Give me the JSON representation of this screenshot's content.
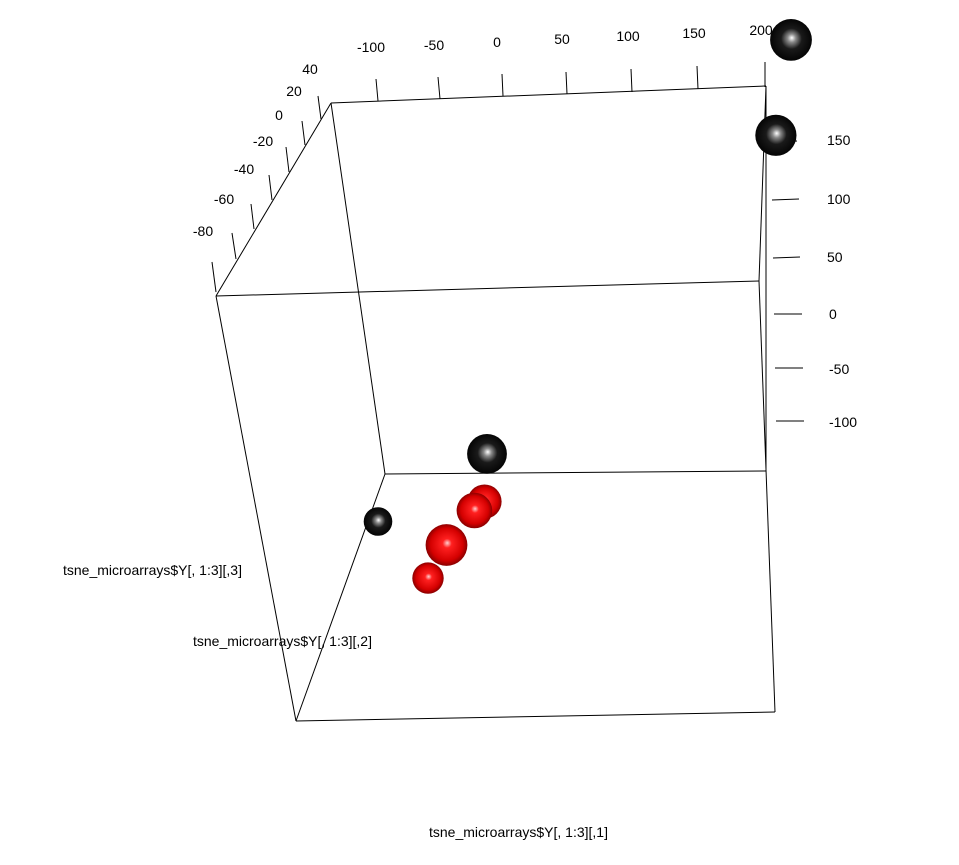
{
  "chart_data": {
    "type": "scatter",
    "dimensions": 3,
    "xlabel": "tsne_microarrays$Y[, 1:3][,1]",
    "ylabel": "tsne_microarrays$Y[, 1:3][,2]",
    "zlabel": "tsne_microarrays$Y[, 1:3][,3]",
    "x_ticks": [
      "-100",
      "-50",
      "0",
      "50",
      "100",
      "150",
      "200"
    ],
    "y_ticks": [
      "40",
      "20",
      "0",
      "-20",
      "-40",
      "-60",
      "-80"
    ],
    "z_ticks": [
      "150",
      "100",
      "50",
      "0",
      "-50",
      "-100"
    ],
    "colors": {
      "group_1": "#000000",
      "group_2": "#e00000"
    },
    "points": [
      {
        "group": "group_1",
        "x": 190,
        "y": 35,
        "z": 135
      },
      {
        "group": "group_1",
        "x": 183,
        "y": 30,
        "z": 65
      },
      {
        "group": "group_1",
        "x": -40,
        "y": -60,
        "z": 5
      },
      {
        "group": "group_1",
        "x": -30,
        "y": 20,
        "z": -190
      },
      {
        "group": "group_2",
        "x": 5,
        "y": -20,
        "z": -105
      },
      {
        "group": "group_2",
        "x": -20,
        "y": -40,
        "z": -110
      },
      {
        "group": "group_2",
        "x": -12,
        "y": -10,
        "z": -145
      },
      {
        "group": "group_2",
        "x": -75,
        "y": 35,
        "z": -320
      }
    ]
  }
}
